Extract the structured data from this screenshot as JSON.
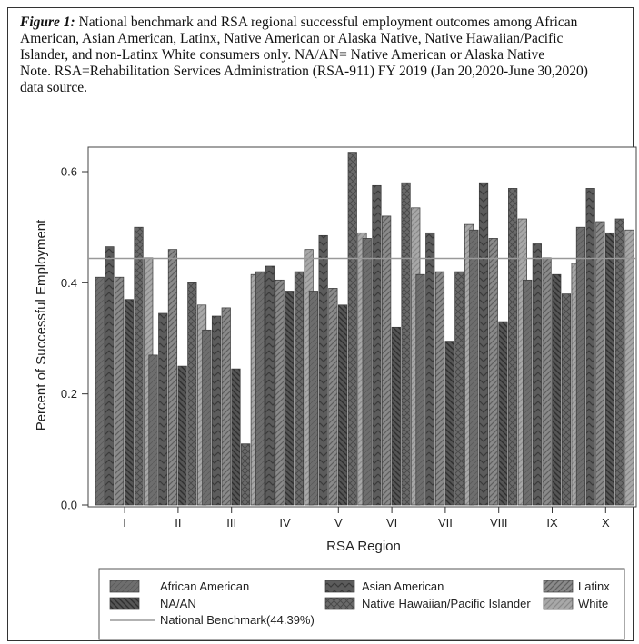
{
  "caption": {
    "lead": "Figure 1:",
    "text": " National benchmark and RSA regional successful employment outcomes among African American, Asian American, Latinx, Native American or Alaska Native, Native Hawaiian/Pacific Islander, and non-Latinx White consumers only. NA/AN= Native American or Alaska Native",
    "note": "Note. RSA=Rehabilitation Services Administration (RSA-911) FY 2019 (Jan 20,2020-June 30,2020) data source."
  },
  "chart_data": {
    "type": "bar",
    "xlabel": "RSA Region",
    "ylabel": "Percent of Successful Employment",
    "ylim": [
      0,
      0.65
    ],
    "yticks": [
      "0.0",
      "0.2",
      "0.4",
      "0.6"
    ],
    "ytick_values": [
      0,
      0.2,
      0.4,
      0.6
    ],
    "categories": [
      "I",
      "II",
      "III",
      "IV",
      "V",
      "VI",
      "VII",
      "VIII",
      "IX",
      "X"
    ],
    "series": [
      {
        "name": "African American",
        "color": "#6e6e6e",
        "pattern": "solid",
        "values": [
          0.41,
          0.27,
          0.315,
          0.42,
          0.385,
          0.48,
          0.415,
          0.495,
          0.405,
          0.5
        ]
      },
      {
        "name": "Asian American",
        "color": "#5c5c5c",
        "pattern": "chevron",
        "values": [
          0.465,
          0.345,
          0.34,
          0.43,
          0.485,
          0.575,
          0.49,
          0.58,
          0.47,
          0.57
        ]
      },
      {
        "name": "Latinx",
        "color": "#8a8a8a",
        "pattern": "diag",
        "values": [
          0.41,
          0.46,
          0.355,
          0.405,
          0.39,
          0.52,
          0.42,
          0.48,
          0.445,
          0.51
        ]
      },
      {
        "name": "NA/AN",
        "color": "#4e4e4e",
        "pattern": "backdiag",
        "values": [
          0.37,
          0.25,
          0.245,
          0.385,
          0.36,
          0.32,
          0.295,
          0.33,
          0.415,
          0.49
        ]
      },
      {
        "name": "Native Hawaiian/Pacific Islander",
        "color": "#6a6a6a",
        "pattern": "cross",
        "values": [
          0.5,
          0.4,
          0.11,
          0.42,
          0.635,
          0.58,
          0.42,
          0.57,
          0.38,
          0.515
        ]
      },
      {
        "name": "White",
        "color": "#a8a8a8",
        "pattern": "diag-light",
        "values": [
          0.445,
          0.36,
          0.415,
          0.46,
          0.49,
          0.535,
          0.505,
          0.515,
          0.435,
          0.495
        ]
      }
    ],
    "benchmark": {
      "name": "National Benchmark(44.39%)",
      "value": 0.4439,
      "color": "#999999"
    },
    "legend_position": "bottom",
    "grid": false
  }
}
